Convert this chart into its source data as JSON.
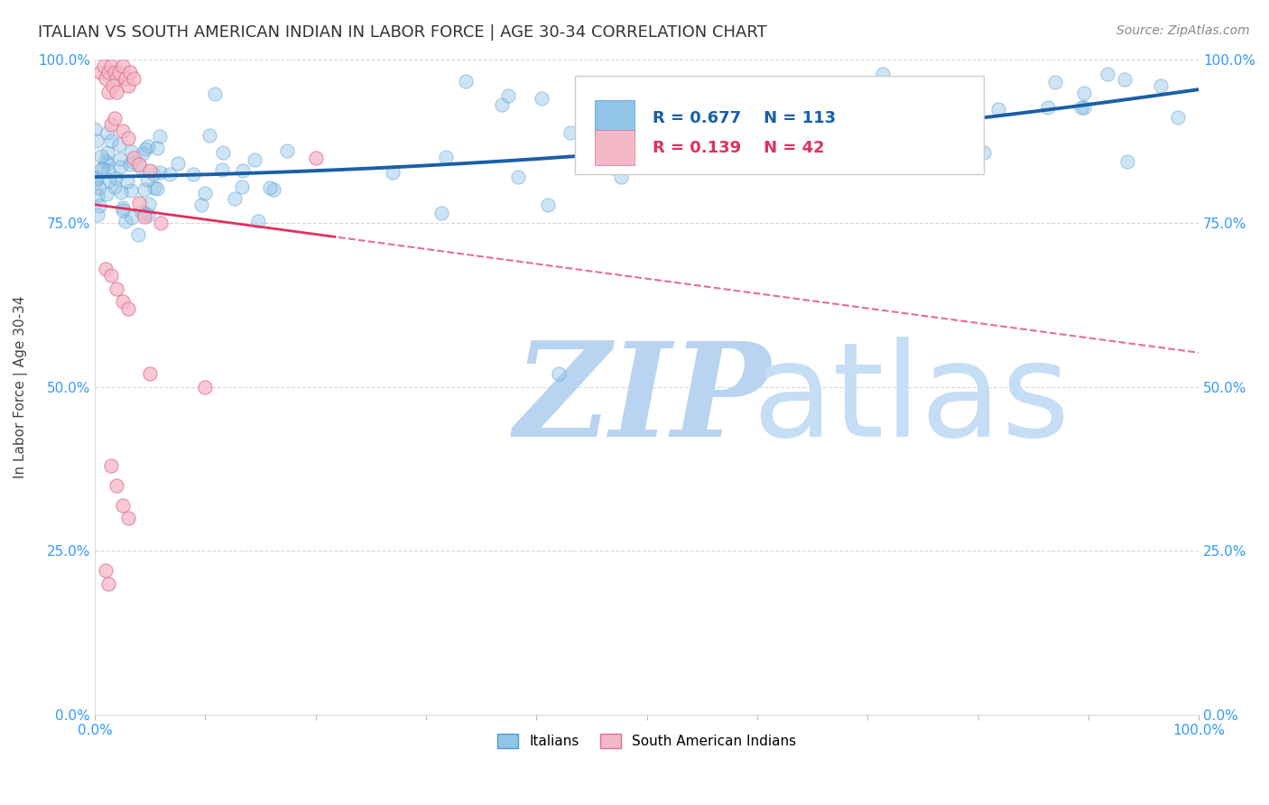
{
  "title": "ITALIAN VS SOUTH AMERICAN INDIAN IN LABOR FORCE | AGE 30-34 CORRELATION CHART",
  "source": "Source: ZipAtlas.com",
  "ylabel": "In Labor Force | Age 30-34",
  "ytick_labels": [
    "0.0%",
    "25.0%",
    "50.0%",
    "75.0%",
    "100.0%"
  ],
  "ytick_positions": [
    0.0,
    0.25,
    0.5,
    0.75,
    1.0
  ],
  "xlim": [
    0.0,
    1.0
  ],
  "ylim": [
    0.0,
    1.0
  ],
  "blue_R": 0.677,
  "blue_N": 113,
  "pink_R": 0.139,
  "pink_N": 42,
  "scatter_size": 120,
  "scatter_alpha": 0.45,
  "blue_color": "#90c4e8",
  "pink_color": "#f5b8c8",
  "blue_edge_color": "#5599cc",
  "pink_edge_color": "#e07090",
  "blue_line_color": "#1a5fa8",
  "pink_line_color": "#e03060",
  "grid_color": "#d8d8d8",
  "title_color": "#333333",
  "axis_label_color": "#3399ff",
  "watermark_zip_color": "#b8d4f0",
  "watermark_atlas_color": "#c5ddf5",
  "title_fontsize": 13,
  "source_fontsize": 10,
  "legend_fontsize": 13
}
